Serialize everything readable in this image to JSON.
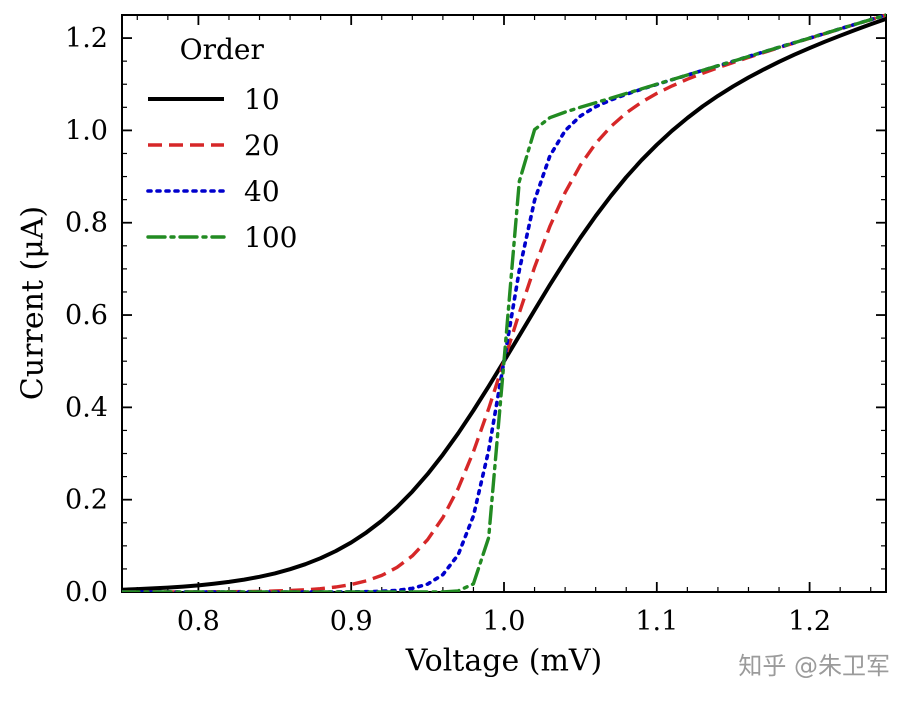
{
  "figure": {
    "background": "#ffffff",
    "watermark": "知乎 @朱卫军",
    "watermark_color": "#9b9b9b"
  },
  "chart_data": {
    "type": "line",
    "xlabel": "Voltage (mV)",
    "ylabel": "Current (μA)",
    "xlim": [
      0.75,
      1.25
    ],
    "ylim": [
      0.0,
      1.25
    ],
    "grid": false,
    "x_major_step": 0.1,
    "x_minor_step": 0.02,
    "y_major_step": 0.2,
    "y_minor_step": 0.05,
    "xtick_values": [
      0.8,
      0.9,
      1.0,
      1.1,
      1.2
    ],
    "xtick_labels": [
      "0.8",
      "0.9",
      "1.0",
      "1.1",
      "1.2"
    ],
    "ytick_values": [
      0.0,
      0.2,
      0.4,
      0.6,
      0.8,
      1.0,
      1.2
    ],
    "ytick_labels": [
      "0.0",
      "0.2",
      "0.4",
      "0.6",
      "0.8",
      "1.0",
      "1.2"
    ],
    "legend": {
      "title": "Order",
      "position": "upper-left"
    },
    "x": [
      0.75,
      0.76,
      0.77,
      0.78,
      0.79,
      0.8,
      0.81,
      0.82,
      0.83,
      0.84,
      0.85,
      0.86,
      0.87,
      0.88,
      0.89,
      0.9,
      0.91,
      0.92,
      0.93,
      0.94,
      0.95,
      0.96,
      0.97,
      0.98,
      0.99,
      1.0,
      1.01,
      1.02,
      1.03,
      1.04,
      1.05,
      1.06,
      1.07,
      1.08,
      1.09,
      1.1,
      1.11,
      1.12,
      1.13,
      1.14,
      1.15,
      1.16,
      1.17,
      1.18,
      1.19,
      1.2,
      1.21,
      1.22,
      1.23,
      1.24,
      1.25
    ],
    "series": [
      {
        "name": "10",
        "order": 10,
        "color": "#000000",
        "dash": "solid",
        "width": 4,
        "values": [
          0.005,
          0.0062,
          0.0077,
          0.0095,
          0.0117,
          0.0144,
          0.0177,
          0.0218,
          0.0268,
          0.0329,
          0.0403,
          0.0493,
          0.0602,
          0.0732,
          0.0888,
          0.1073,
          0.1291,
          0.1545,
          0.184,
          0.2176,
          0.2555,
          0.2976,
          0.3437,
          0.3933,
          0.4457,
          0.5,
          0.5553,
          0.6107,
          0.665,
          0.7176,
          0.7676,
          0.8146,
          0.8583,
          0.8986,
          0.9354,
          0.9689,
          0.9993,
          1.0268,
          1.0519,
          1.0747,
          1.0955,
          1.1146,
          1.1322,
          1.1486,
          1.164,
          1.1784,
          1.1921,
          1.2052,
          1.2178,
          1.2299,
          1.2416
        ]
      },
      {
        "name": "20",
        "order": 20,
        "color": "#d62728",
        "dash": "dashed",
        "width": 3.4,
        "values": [
          0.0,
          0.0001,
          0.0001,
          0.0001,
          0.0002,
          0.0003,
          0.0004,
          0.0006,
          0.0009,
          0.0014,
          0.0021,
          0.0032,
          0.0048,
          0.0072,
          0.0108,
          0.0162,
          0.0242,
          0.036,
          0.0533,
          0.0782,
          0.1132,
          0.1613,
          0.2245,
          0.3038,
          0.3973,
          0.5,
          0.6047,
          0.7038,
          0.7916,
          0.8653,
          0.9248,
          0.9718,
          1.0087,
          1.0377,
          1.061,
          1.0802,
          1.0965,
          1.1109,
          1.1238,
          1.1358,
          1.1472,
          1.1581,
          1.1687,
          1.1791,
          1.1894,
          1.1996,
          1.2097,
          1.2198,
          1.2299,
          1.2399,
          1.2499
        ]
      },
      {
        "name": "40",
        "order": 40,
        "color": "#0000cd",
        "dash": "dotted",
        "width": 3.6,
        "values": [
          0.0,
          0.0,
          0.0,
          0.0,
          0.0,
          0.0,
          0.0,
          0.0,
          0.0,
          0.0,
          0.0,
          0.0,
          0.0,
          0.0001,
          0.0001,
          0.0003,
          0.0007,
          0.0015,
          0.0034,
          0.0077,
          0.0171,
          0.0376,
          0.0807,
          0.1646,
          0.3069,
          0.5,
          0.6969,
          0.8487,
          0.9443,
          0.9993,
          1.0311,
          1.0513,
          1.0661,
          1.0782,
          1.0892,
          1.0996,
          1.1098,
          1.1199,
          1.13,
          1.14,
          1.15,
          1.16,
          1.17,
          1.18,
          1.19,
          1.2,
          1.21,
          1.22,
          1.23,
          1.24,
          1.25
        ]
      },
      {
        "name": "100",
        "order": 100,
        "color": "#228b22",
        "dash": "dashdot",
        "width": 3.4,
        "values": [
          0.0,
          0.0,
          0.0,
          0.0,
          0.0,
          0.0,
          0.0,
          0.0,
          0.0,
          0.0,
          0.0,
          0.0,
          0.0,
          0.0,
          0.0,
          0.0,
          0.0,
          0.0,
          0.0,
          0.0,
          0.0,
          0.0003,
          0.0024,
          0.0176,
          0.118,
          0.5,
          0.8896,
          1.0017,
          1.0275,
          1.0397,
          1.05,
          1.06,
          1.07,
          1.08,
          1.09,
          1.1,
          1.11,
          1.12,
          1.13,
          1.14,
          1.15,
          1.16,
          1.17,
          1.18,
          1.19,
          1.2,
          1.21,
          1.22,
          1.23,
          1.24,
          1.25
        ]
      }
    ]
  }
}
